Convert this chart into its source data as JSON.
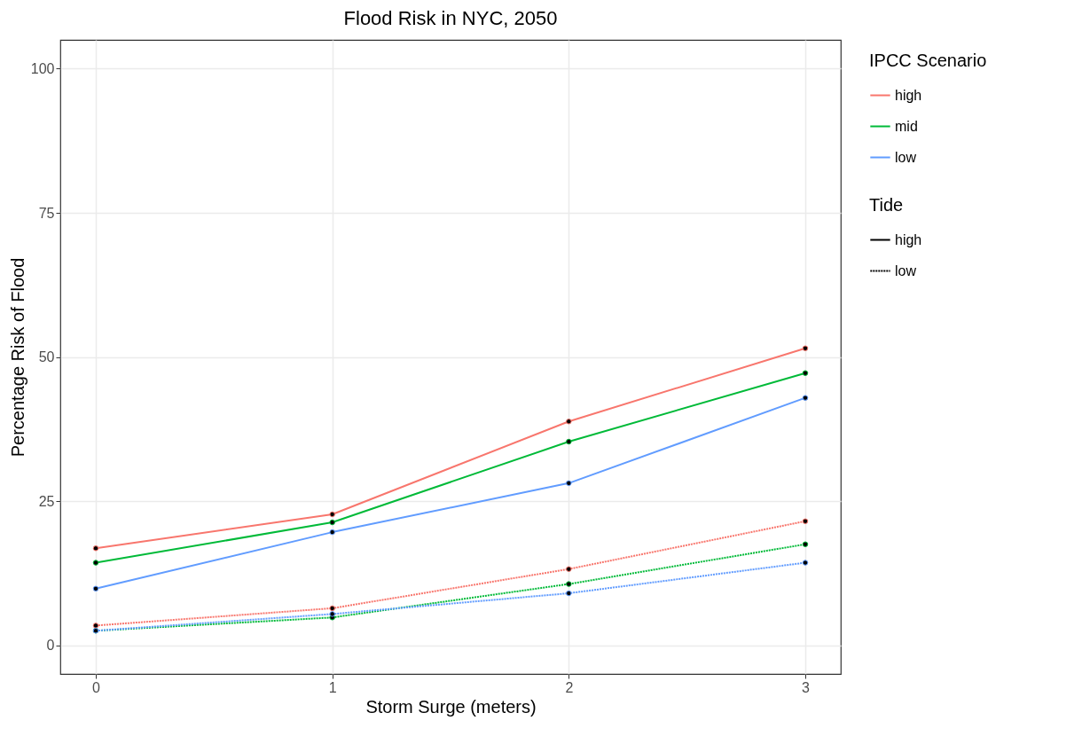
{
  "chart_data": {
    "type": "line",
    "title": "Flood Risk in NYC, 2050",
    "xlabel": "Storm Surge (meters)",
    "ylabel": "Percentage Risk of Flood",
    "legend_title": "IPCC Scenario",
    "legend": "right",
    "grid": true,
    "marker": "circle",
    "x": [
      0,
      1,
      2,
      3
    ],
    "xlim": [
      -0.15,
      3.15
    ],
    "xticks": [
      0,
      1,
      2,
      3
    ],
    "ylim": [
      -5,
      105
    ],
    "yticks": [
      0,
      25,
      50,
      75,
      100
    ],
    "annotations": [
      "Tide",
      "high",
      "low"
    ],
    "series": [
      {
        "name": "high",
        "color": "#f8766d",
        "line_style": "solid",
        "values": [
          16.8,
          22.7,
          38.8,
          51.5
        ]
      },
      {
        "name": "mid",
        "color": "#00ba38",
        "line_style": "solid",
        "values": [
          14.3,
          21.3,
          35.3,
          47.2
        ]
      },
      {
        "name": "low",
        "color": "#619cff",
        "line_style": "solid",
        "values": [
          9.8,
          19.6,
          28.1,
          42.9
        ]
      },
      {
        "color": "#f8766d",
        "line_style": "dashed",
        "values": [
          3.4,
          6.4,
          13.2,
          21.5
        ]
      },
      {
        "color": "#00ba38",
        "line_style": "dashed",
        "values": [
          2.5,
          4.8,
          10.6,
          17.5
        ]
      },
      {
        "color": "#619cff",
        "line_style": "dashed",
        "values": [
          2.5,
          5.4,
          9.0,
          14.3
        ]
      }
    ]
  }
}
